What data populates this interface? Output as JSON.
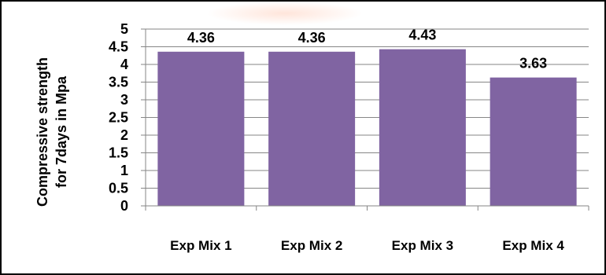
{
  "chart_data": {
    "type": "bar",
    "categories": [
      "Exp Mix 1",
      "Exp Mix 2",
      "Exp Mix 3",
      "Exp Mix 4"
    ],
    "values": [
      4.36,
      4.36,
      4.43,
      3.63
    ],
    "data_labels": [
      "4.36",
      "4.36",
      "4.43",
      "3.63"
    ],
    "title": "",
    "xlabel": "",
    "ylabel_lines": [
      "Compressive strength",
      "for 7days in Mpa"
    ],
    "ylim": [
      0,
      5
    ],
    "yticks": [
      0,
      0.5,
      1,
      1.5,
      2,
      2.5,
      3,
      3.5,
      4,
      4.5,
      5
    ],
    "ytick_labels": [
      "0",
      "0.5",
      "1",
      "1.5",
      "2",
      "2.5",
      "3",
      "3.5",
      "4",
      "4.5",
      "5"
    ],
    "grid": true,
    "legend": "none",
    "bar_color": "#8064A2",
    "grid_color": "#868686",
    "axis_color": "#868686"
  }
}
